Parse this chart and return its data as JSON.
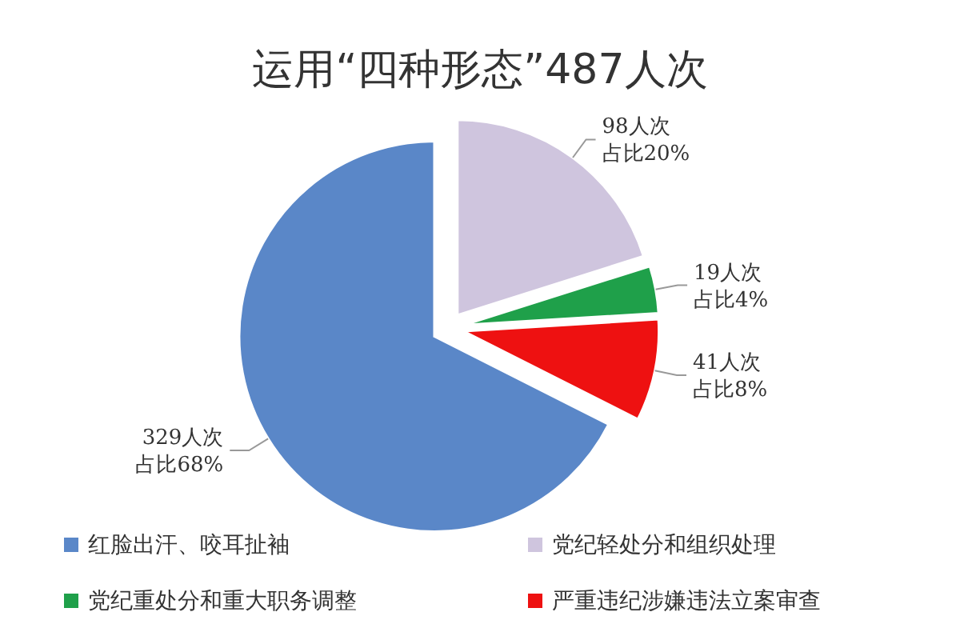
{
  "chart_data": {
    "type": "pie",
    "title": "运用“四种形态”487人次",
    "categories": [
      "红脸出汗、咬耳扯袖",
      "党纪轻处分和组织处理",
      "党纪重处分和重大职务调整",
      "严重违纪涉嫌违法立案审查"
    ],
    "values": [
      329,
      98,
      19,
      41
    ],
    "colors": [
      "#5a87c8",
      "#cfc5de",
      "#1fa04a",
      "#ee1111"
    ],
    "value_labels": [
      "329人次占比68%",
      "98人次占比20%",
      "19人次占比4%",
      "41人次占比8%"
    ],
    "legend": "bottom"
  }
}
